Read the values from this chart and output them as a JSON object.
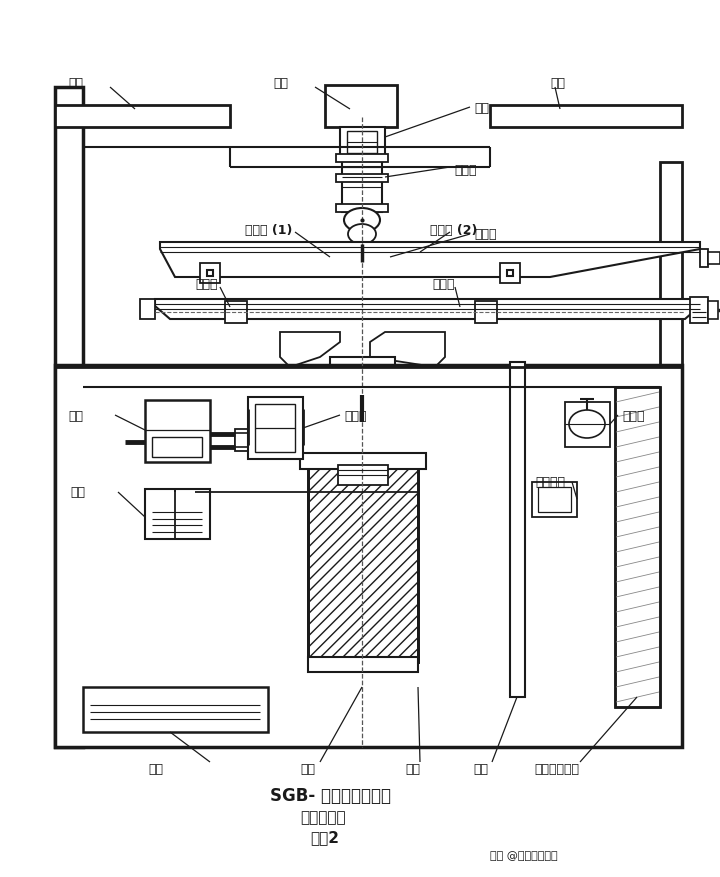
{
  "bg_color": "#ffffff",
  "line_color": "#1a1a1a",
  "title1": "SGB- 台型抗折试验机",
  "title2": "机械结构图",
  "title3": "附图2",
  "watermark": "知乎 @苏州科准测控",
  "lbl_gaiban_l": "盖板",
  "lbl_lizhu": "立柱",
  "lbl_gaiban_r": "盖板",
  "lbl_luoshuan": "螺栓",
  "lbl_chuanganqi": "传感器",
  "lbl_shangyatou": "上压头",
  "lbl_pinghengtie1": "平衡铁 (1)",
  "lbl_pinghengtie2": "平衡铁 (2)",
  "lbl_zhichengjia": "支承架",
  "lbl_dingweijia": "定位夹",
  "lbl_dianji": "电机",
  "lbl_youbeng": "油泵",
  "lbl_diancifa": "电磁阀",
  "lbl_tiaosuf": "调速阀",
  "lbl_xianzhu": "限位开关",
  "lbl_youxiang": "油筒",
  "lbl_huosai": "活塞",
  "lbl_yougang": "油缸",
  "lbl_lagan": "拉杆",
  "lbl_dianluban": "电路板数显板"
}
